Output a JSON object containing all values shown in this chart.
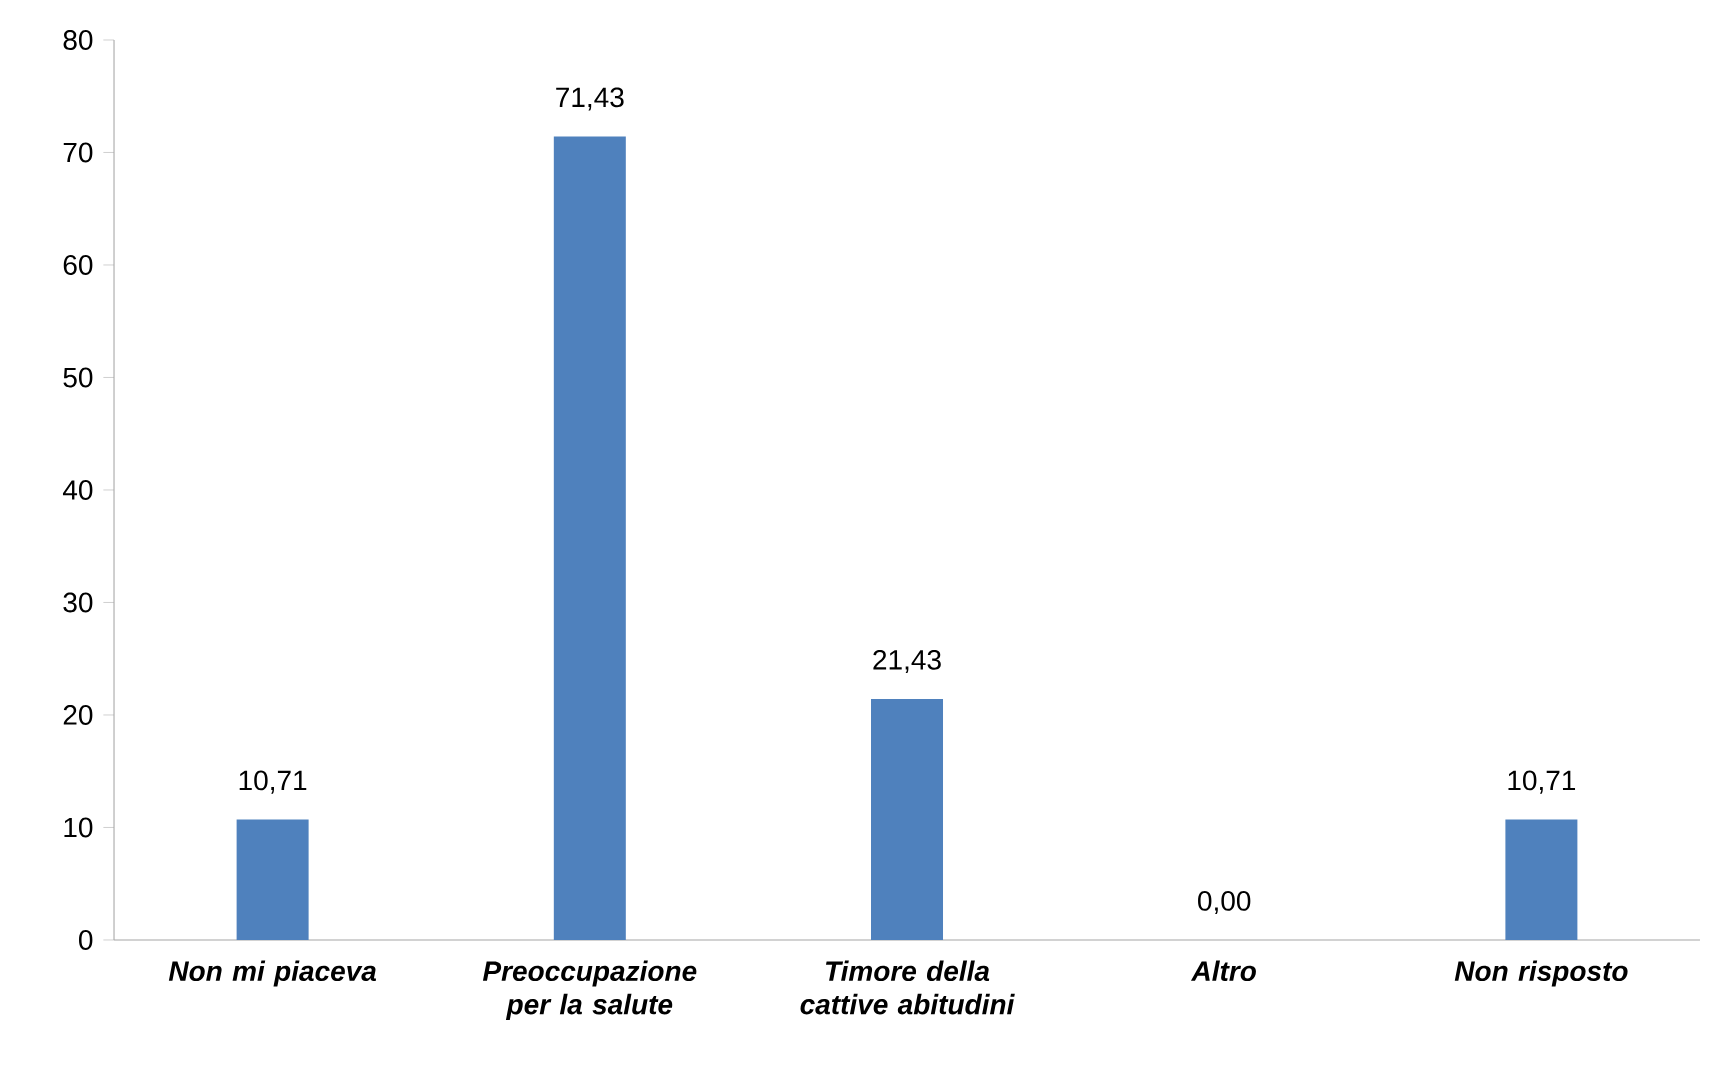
{
  "chart_data": {
    "type": "bar",
    "categories": [
      "Non mi piaceva",
      "Preoccupazione per la salute",
      "Timore della cattive abitudini",
      "Altro",
      "Non risposto"
    ],
    "values": [
      10.71,
      71.43,
      21.43,
      0,
      10.71
    ],
    "value_labels": [
      "10,71",
      "71,43",
      "21,43",
      "0,00",
      "10,71"
    ],
    "color": "#4f81bd",
    "ylim": [
      0,
      80
    ],
    "yticks": [
      0,
      10,
      20,
      30,
      40,
      50,
      60,
      70,
      80
    ],
    "grid": false
  }
}
